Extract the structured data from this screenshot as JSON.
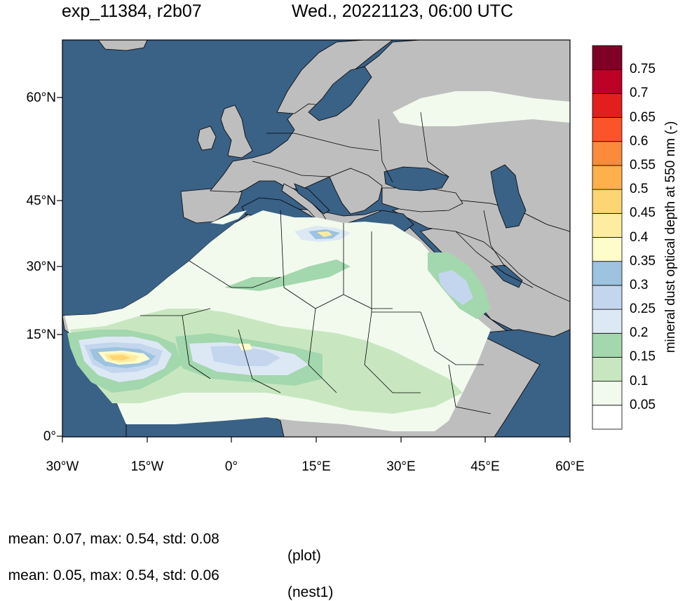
{
  "header": {
    "left_title": "exp_11384, r2b07",
    "right_title": "Wed., 20221123, 06:00 UTC"
  },
  "axes": {
    "lat_ticks": [
      "60°N",
      "45°N",
      "30°N",
      "15°N",
      "0°"
    ],
    "lon_ticks": [
      "30°W",
      "15°W",
      "0°",
      "15°E",
      "30°E",
      "45°E",
      "60°E"
    ]
  },
  "colorbar": {
    "title": "mineral dust optical depth at 550 nm (-)",
    "levels": [
      "0.05",
      "0.1",
      "0.15",
      "0.2",
      "0.25",
      "0.3",
      "0.35",
      "0.4",
      "0.45",
      "0.5",
      "0.55",
      "0.6",
      "0.65",
      "0.7",
      "0.75"
    ],
    "colors": [
      "#ffffff",
      "#f2faee",
      "#c8e7c0",
      "#a3d7ad",
      "#dde8f5",
      "#c3d6ee",
      "#9cc3df",
      "#fffccc",
      "#feeda0",
      "#fed573",
      "#fdb04b",
      "#fc8a3b",
      "#fc542a",
      "#e31f1d",
      "#bd0026",
      "#800026"
    ]
  },
  "map": {
    "ocean_color": "#3a6186",
    "land_color": "#bebebe",
    "border_color": "#000000"
  },
  "stats": {
    "plot_line": "mean: 0.07, max: 0.54, std: 0.08",
    "plot_tag": "(plot)",
    "nest_line": "mean: 0.05, max: 0.54, std: 0.06",
    "nest_tag": "(nest1)"
  }
}
